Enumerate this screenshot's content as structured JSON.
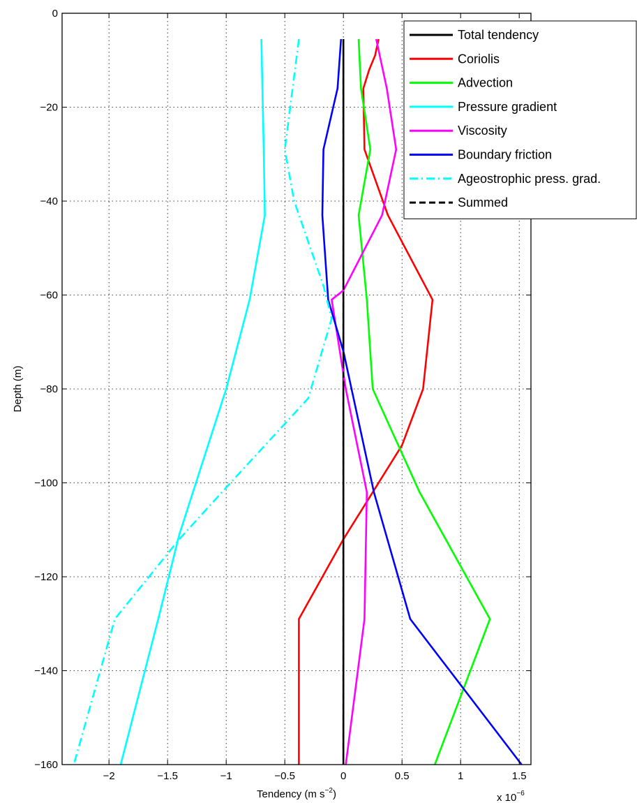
{
  "chart_data": {
    "type": "line",
    "xlabel": "Tendency (m s",
    "xlabel_superscript": "−2",
    "xlabel_close": ")",
    "ylabel": "Depth (m)",
    "x_multiplier_label": "x 10",
    "x_multiplier_exponent": "−6",
    "xlim": [
      -2.4,
      1.6
    ],
    "ylim": [
      -160,
      0
    ],
    "xticks": [
      -2,
      -1.5,
      -1,
      -0.5,
      0,
      0.5,
      1,
      1.5
    ],
    "xtick_labels": [
      "−2",
      "−1.5",
      "−1",
      "−0.5",
      "0",
      "0.5",
      "1",
      "1.5"
    ],
    "yticks": [
      0,
      -20,
      -40,
      -60,
      -80,
      -100,
      -120,
      -140,
      -160
    ],
    "ytick_labels": [
      "0",
      "−20",
      "−40",
      "−60",
      "−80",
      "−100",
      "−120",
      "−140",
      "−160"
    ],
    "grid": true,
    "legend_position": "top-right",
    "series": [
      {
        "name": "Total tendency",
        "color": "#000000",
        "style": "solid",
        "points": [
          [
            0.0,
            -5.5
          ],
          [
            0.0,
            -160
          ]
        ]
      },
      {
        "name": "Coriolis",
        "color": "#ff0000",
        "style": "solid",
        "points": [
          [
            0.3,
            -5.5
          ],
          [
            0.27,
            -9
          ],
          [
            0.22,
            -12
          ],
          [
            0.17,
            -16
          ],
          [
            0.18,
            -29
          ],
          [
            0.38,
            -43
          ],
          [
            0.76,
            -61
          ],
          [
            0.68,
            -80
          ],
          [
            0.5,
            -92
          ],
          [
            0.2,
            -104
          ],
          [
            0.0,
            -112
          ],
          [
            -0.38,
            -129
          ],
          [
            -0.38,
            -160
          ]
        ]
      },
      {
        "name": "Advection",
        "color": "#00ff00",
        "style": "solid",
        "points": [
          [
            0.13,
            -5.5
          ],
          [
            0.15,
            -16
          ],
          [
            0.23,
            -29
          ],
          [
            0.13,
            -43
          ],
          [
            0.2,
            -61
          ],
          [
            0.25,
            -80
          ],
          [
            0.65,
            -102
          ],
          [
            1.25,
            -129
          ],
          [
            0.78,
            -160
          ]
        ]
      },
      {
        "name": "Pressure gradient",
        "color": "#00ffff",
        "style": "solid",
        "points": [
          [
            -0.7,
            -5.5
          ],
          [
            -0.68,
            -29
          ],
          [
            -0.67,
            -43
          ],
          [
            -0.8,
            -61
          ],
          [
            -1.0,
            -80
          ],
          [
            -1.4,
            -111
          ],
          [
            -1.58,
            -129
          ],
          [
            -1.9,
            -160
          ]
        ]
      },
      {
        "name": "Viscosity",
        "color": "#ff00ff",
        "style": "solid",
        "points": [
          [
            0.28,
            -5.5
          ],
          [
            0.37,
            -16
          ],
          [
            0.45,
            -29
          ],
          [
            0.33,
            -43
          ],
          [
            0.0,
            -59
          ],
          [
            -0.1,
            -61
          ],
          [
            0.02,
            -80
          ],
          [
            0.2,
            -102
          ],
          [
            0.18,
            -129
          ],
          [
            0.02,
            -160
          ]
        ]
      },
      {
        "name": "Boundary friction",
        "color": "#0000ff",
        "style": "solid",
        "points": [
          [
            -0.02,
            -5.5
          ],
          [
            -0.05,
            -16
          ],
          [
            -0.17,
            -29
          ],
          [
            -0.18,
            -43
          ],
          [
            -0.13,
            -61
          ],
          [
            0.0,
            -72
          ],
          [
            0.26,
            -102
          ],
          [
            0.57,
            -129
          ],
          [
            1.52,
            -160
          ]
        ]
      },
      {
        "name": "Ageostrophic press. grad.",
        "color": "#00ffff",
        "style": "dashdot",
        "points": [
          [
            -0.38,
            -5.5
          ],
          [
            -0.5,
            -29
          ],
          [
            -0.42,
            -40
          ],
          [
            -0.17,
            -58
          ],
          [
            -0.1,
            -65
          ],
          [
            -0.3,
            -82
          ],
          [
            -1.0,
            -101
          ],
          [
            -1.4,
            -112
          ],
          [
            -1.95,
            -129
          ],
          [
            -2.3,
            -160
          ]
        ]
      },
      {
        "name": "Summed",
        "color": "#000000",
        "style": "dashed",
        "points": [
          [
            0.0,
            -5.5
          ],
          [
            0.0,
            -160
          ]
        ]
      }
    ]
  }
}
